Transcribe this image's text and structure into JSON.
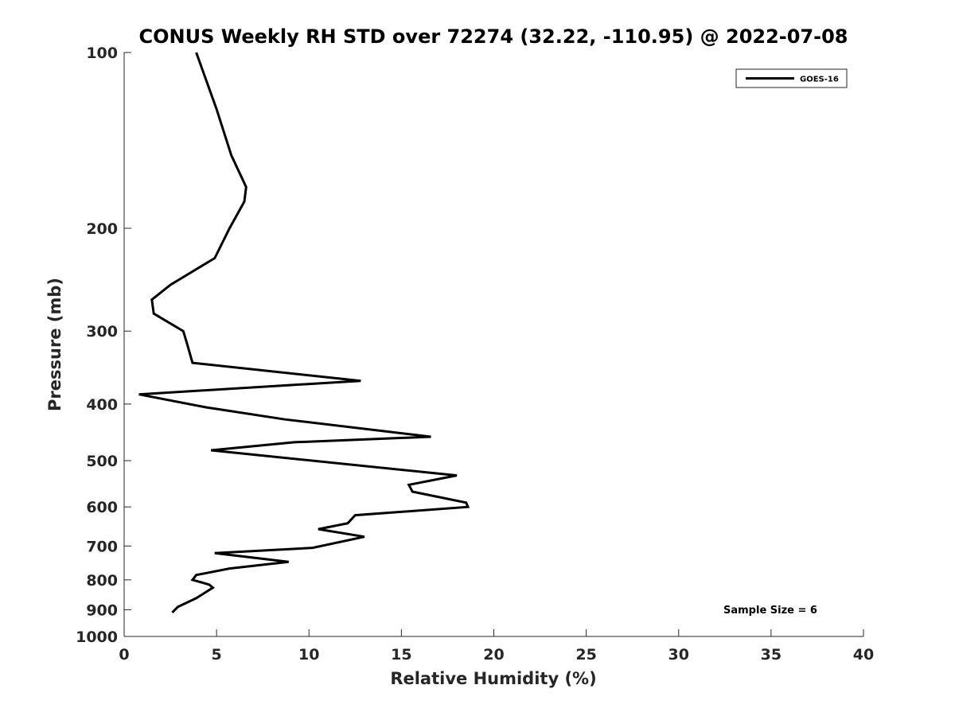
{
  "chart_data": {
    "type": "line",
    "title": "CONUS Weekly RH STD over 72274 (32.22, -110.95) @ 2022-07-08",
    "xlabel": "Relative Humidity (%)",
    "ylabel": "Pressure (mb)",
    "xlim": [
      0,
      40
    ],
    "ylim": [
      100,
      1000
    ],
    "y_scale": "log",
    "y_reversed": true,
    "x_ticks": [
      0,
      5,
      10,
      15,
      20,
      25,
      30,
      35,
      40
    ],
    "x_tick_labels": [
      "0",
      "5",
      "10",
      "15",
      "20",
      "25",
      "30",
      "35",
      "40"
    ],
    "y_ticks": [
      100,
      200,
      300,
      400,
      500,
      600,
      700,
      800,
      900,
      1000
    ],
    "y_tick_labels": [
      "100",
      "200",
      "300",
      "400",
      "500",
      "600",
      "700",
      "800",
      "900",
      "1000"
    ],
    "grid": false,
    "legend_position": "top-right",
    "annotation": "Sample Size = 6",
    "series": [
      {
        "name": "GOES-16",
        "color": "#000000",
        "x": [
          3.9,
          5.0,
          5.8,
          6.6,
          6.5,
          5.7,
          4.9,
          2.5,
          1.5,
          1.6,
          3.2,
          3.4,
          3.7,
          12.8,
          0.8,
          4.4,
          8.7,
          16.6,
          9.2,
          4.7,
          18.0,
          15.4,
          15.6,
          18.5,
          18.6,
          12.5,
          12.1,
          10.5,
          13.0,
          10.2,
          4.9,
          8.9,
          5.7,
          3.9,
          3.7,
          4.6,
          4.8,
          3.9,
          2.9,
          2.6
        ],
        "y": [
          100,
          125,
          150,
          170,
          180,
          200,
          225,
          250,
          265,
          280,
          300,
          315,
          340,
          365,
          385,
          405,
          425,
          455,
          465,
          480,
          530,
          550,
          565,
          590,
          600,
          620,
          640,
          655,
          675,
          705,
          720,
          745,
          765,
          785,
          800,
          815,
          825,
          860,
          890,
          910
        ]
      }
    ]
  }
}
